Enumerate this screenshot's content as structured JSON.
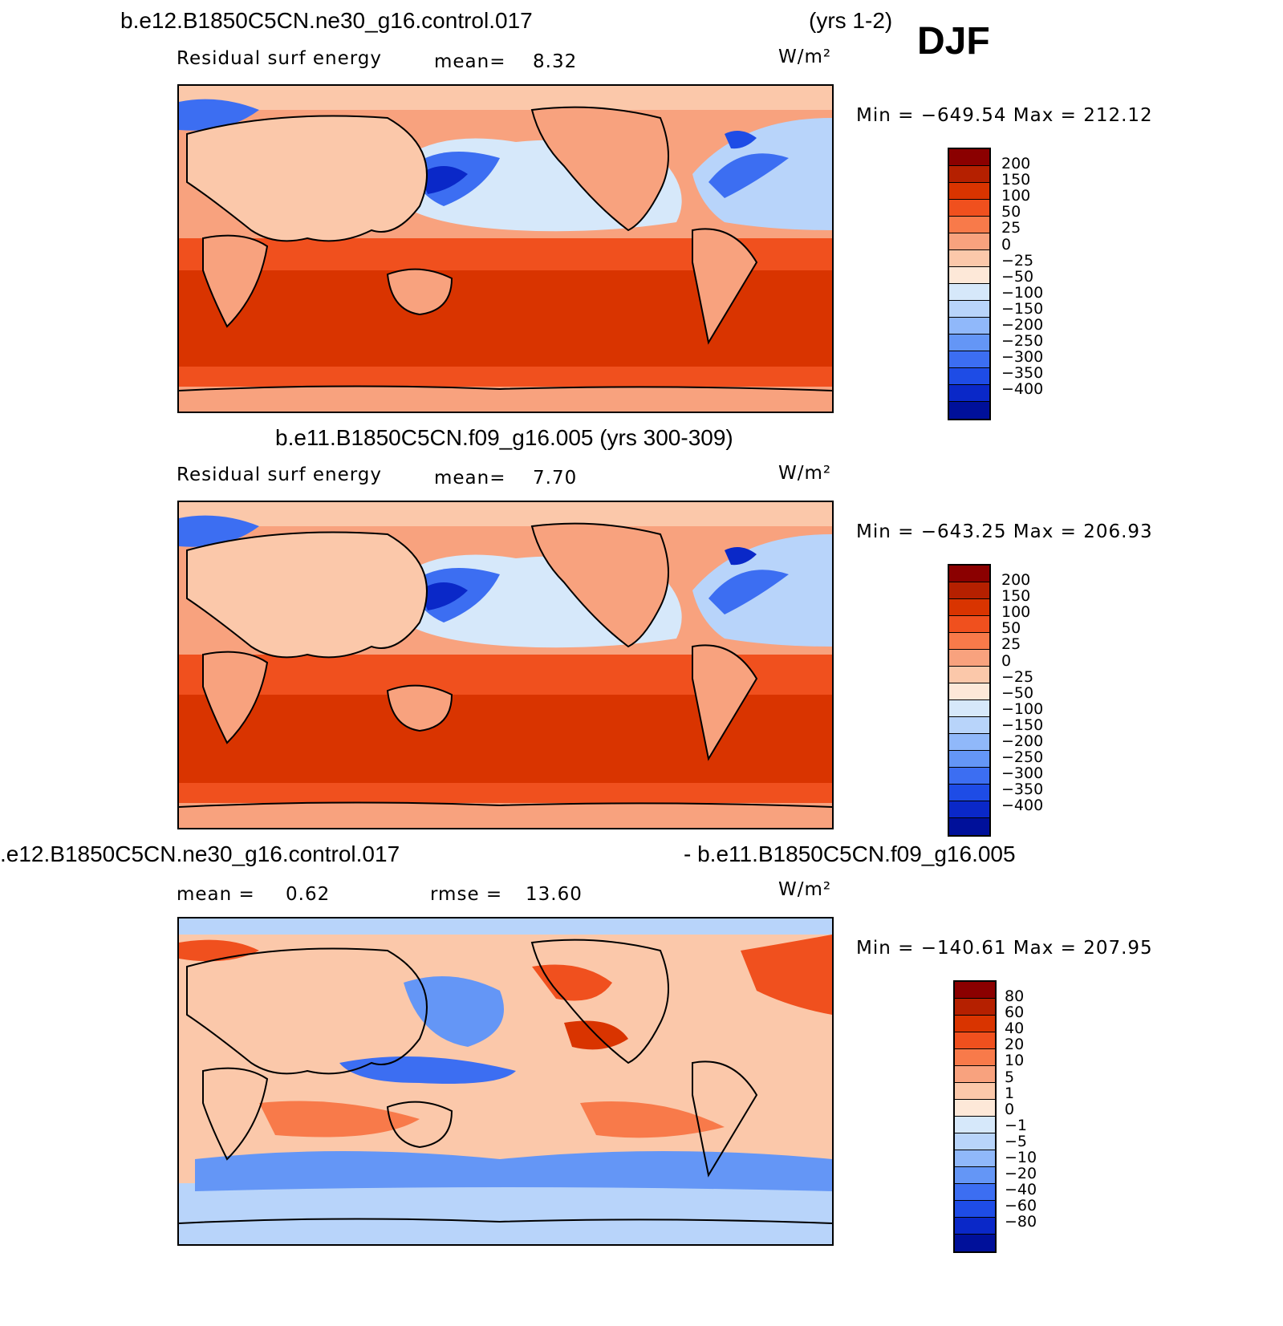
{
  "header": {
    "case_title": "b.e12.B1850C5CN.ne30_g16.control.017",
    "years": "(yrs 1-2)",
    "season": "DJF"
  },
  "panel1": {
    "variable": "Residual surf energy",
    "mean_label": "mean=",
    "mean_value": "8.32",
    "units": "W/m²",
    "minmax": "Min = −649.54 Max = 212.12"
  },
  "panel2": {
    "title": "b.e11.B1850C5CN.f09_g16.005 (yrs 300-309)",
    "variable": "Residual surf energy",
    "mean_label": "mean=",
    "mean_value": "7.70",
    "units": "W/m²",
    "minmax": "Min = −643.25 Max = 206.93"
  },
  "panel3": {
    "title_left": ".e12.B1850C5CN.ne30_g16.control.017",
    "title_right": "- b.e11.B1850C5CN.f09_g16.005",
    "mean_label": "mean =",
    "mean_value": "0.62",
    "rmse_label": "rmse =",
    "rmse_value": "13.60",
    "units": "W/m²",
    "minmax": "Min = −140.61 Max = 207.95"
  },
  "colorbar_main": {
    "labels": [
      "200",
      "150",
      "100",
      "50",
      "25",
      "0",
      "−25",
      "−50",
      "−100",
      "−150",
      "−200",
      "−250",
      "−300",
      "−350",
      "−400"
    ],
    "colors": [
      "#8b0000",
      "#b52000",
      "#d93400",
      "#f0501e",
      "#f87a4a",
      "#f8a27e",
      "#fbc8aa",
      "#fde8d8",
      "#d6e8fa",
      "#b8d4fa",
      "#90b8fa",
      "#6496f6",
      "#3c6ef2",
      "#1e4ce6",
      "#0a28c8",
      "#00109a"
    ]
  },
  "colorbar_diff": {
    "labels": [
      "80",
      "60",
      "40",
      "20",
      "10",
      "5",
      "1",
      "0",
      "−1",
      "−5",
      "−10",
      "−20",
      "−40",
      "−60",
      "−80"
    ],
    "colors": [
      "#8b0000",
      "#b52000",
      "#d93400",
      "#f0501e",
      "#f87a4a",
      "#f8a27e",
      "#fbc8aa",
      "#fde8d8",
      "#d6e8fa",
      "#b8d4fa",
      "#90b8fa",
      "#6496f6",
      "#3c6ef2",
      "#1e4ce6",
      "#0a28c8",
      "#00109a"
    ]
  }
}
